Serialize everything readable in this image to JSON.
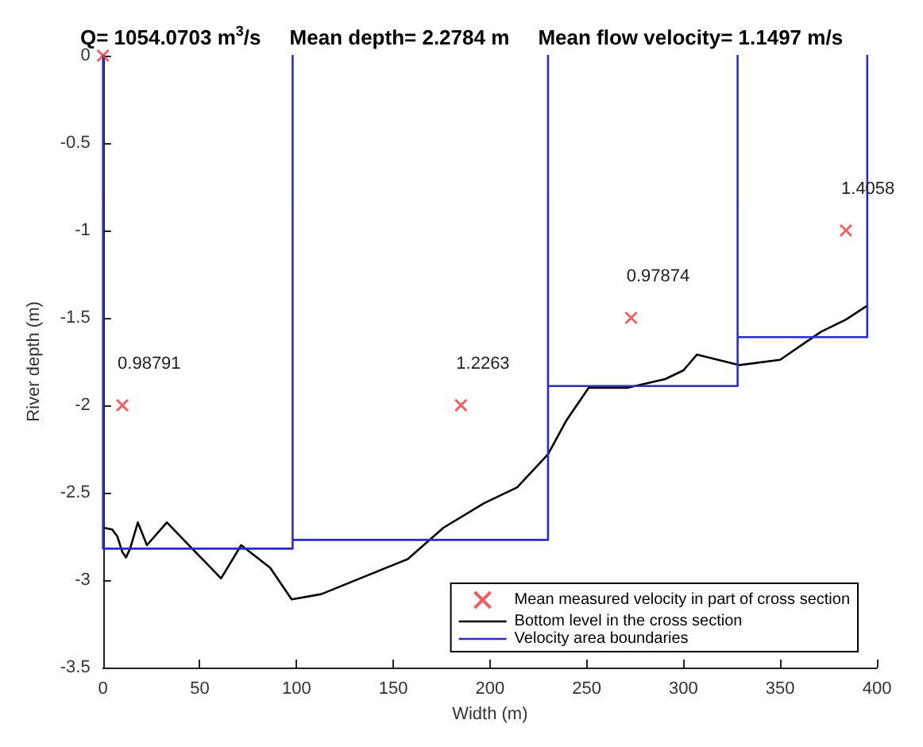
{
  "chart_data": {
    "type": "line",
    "title": "Q= 1054.0703 m$^{3}$/s     Mean depth= 2.2784 m     Mean flow velocity= 1.1497 m/s",
    "xlabel": "Width (m)",
    "ylabel": "River depth (m)",
    "xlim": [
      0,
      400
    ],
    "xticks": [
      0,
      50,
      100,
      150,
      200,
      250,
      300,
      350,
      400
    ],
    "ylim": [
      -3.5,
      0
    ],
    "yticks": [
      -3.5,
      -3,
      -2.5,
      -2,
      -1.5,
      -1,
      -0.5,
      0
    ],
    "grid": false,
    "legend": "bottom right",
    "annotations": [
      {
        "text": "0.98791",
        "x": 10,
        "y": -2
      },
      {
        "text": "1.2263",
        "x": 185,
        "y": -2
      },
      {
        "text": "0.97874",
        "x": 273,
        "y": -1.5
      },
      {
        "text": "1.4058",
        "x": 384,
        "y": -1
      }
    ],
    "series": [
      {
        "name": "Mean measured velocity in part of cross section",
        "type": "scatter",
        "marker": "cross",
        "color": "#e8383d",
        "x": [
          0,
          10,
          185,
          273,
          384
        ],
        "values": [
          0,
          -2,
          -2,
          -1.5,
          -1
        ]
      },
      {
        "name": "Bottom level in the cross section",
        "marker": "none",
        "line_style": "solid",
        "color": "#000000",
        "x": [
          0,
          4.7,
          7.4,
          10,
          11.9,
          14,
          18,
          22.7,
          33,
          61,
          71.4,
          86.4,
          97.5,
          112.8,
          157.5,
          176,
          197,
          214,
          230,
          239.3,
          251,
          271,
          290.6,
          300,
          307,
          329,
          350,
          371,
          384,
          395
        ],
        "values": [
          -2.7,
          -2.71,
          -2.75,
          -2.84,
          -2.87,
          -2.82,
          -2.67,
          -2.8,
          -2.67,
          -2.99,
          -2.8,
          -2.93,
          -3.11,
          -3.08,
          -2.88,
          -2.7,
          -2.56,
          -2.47,
          -2.28,
          -2.09,
          -1.9,
          -1.9,
          -1.85,
          -1.8,
          -1.71,
          -1.77,
          -1.74,
          -1.58,
          -1.51,
          -1.43
        ]
      },
      {
        "name": "Velocity area boundaries",
        "marker": "none",
        "line_style": "solid",
        "color": "#2b2bc8",
        "x": [
          0,
          0,
          98,
          98,
          98,
          230,
          230,
          230,
          328,
          328,
          328,
          395,
          395
        ],
        "values": [
          0,
          -2.82,
          -2.82,
          0,
          -2.77,
          -2.77,
          0,
          -1.89,
          -1.89,
          0,
          -1.61,
          -1.61,
          0
        ]
      }
    ]
  }
}
